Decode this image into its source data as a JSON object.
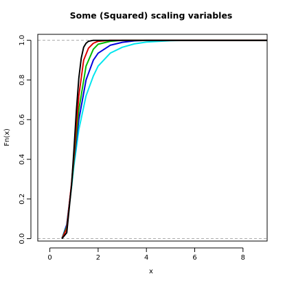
{
  "chart_data": {
    "type": "line",
    "title": "Some (Squared) scaling variables",
    "xlabel": "x",
    "ylabel": "Fn(x)",
    "xlim": [
      -0.5,
      9
    ],
    "ylim": [
      -0.012,
      1.03
    ],
    "x_ticks": [
      0,
      2,
      4,
      6,
      8
    ],
    "y_ticks": [
      0.0,
      0.2,
      0.4,
      0.6,
      0.8,
      1.0
    ],
    "x_tick_labels": [
      "0",
      "2",
      "4",
      "6",
      "8"
    ],
    "y_tick_labels": [
      "0.0",
      "0.2",
      "0.4",
      "0.6",
      "0.8",
      "1.0"
    ],
    "reference_lines": [
      0,
      1
    ],
    "grid": false,
    "legend": "none",
    "series": [
      {
        "color": "#00e5ee",
        "x": [
          0.5,
          0.7,
          0.9,
          1.0,
          1.2,
          1.5,
          1.8,
          2.0,
          2.5,
          3.0,
          3.5,
          4.0,
          5.0,
          6.0,
          9.0
        ],
        "y": [
          0.0,
          0.07,
          0.26,
          0.37,
          0.55,
          0.72,
          0.82,
          0.87,
          0.935,
          0.965,
          0.982,
          0.991,
          0.998,
          1.0,
          1.0
        ]
      },
      {
        "color": "#0000dd",
        "x": [
          0.5,
          0.7,
          0.9,
          1.0,
          1.2,
          1.5,
          1.8,
          2.0,
          2.5,
          3.0,
          3.5,
          4.0,
          9.0
        ],
        "y": [
          0.0,
          0.07,
          0.27,
          0.39,
          0.6,
          0.8,
          0.9,
          0.935,
          0.975,
          0.99,
          0.997,
          1.0,
          1.0
        ]
      },
      {
        "color": "#00bb00",
        "x": [
          0.5,
          0.7,
          0.9,
          1.0,
          1.2,
          1.5,
          1.8,
          2.0,
          2.5,
          3.0,
          9.0
        ],
        "y": [
          0.0,
          0.06,
          0.27,
          0.4,
          0.65,
          0.87,
          0.955,
          0.98,
          0.995,
          1.0,
          1.0
        ]
      },
      {
        "color": "#dd0000",
        "x": [
          0.5,
          0.7,
          0.9,
          1.0,
          1.2,
          1.4,
          1.6,
          1.8,
          2.0,
          2.5,
          9.0
        ],
        "y": [
          0.0,
          0.05,
          0.28,
          0.42,
          0.72,
          0.9,
          0.96,
          0.985,
          0.995,
          1.0,
          1.0
        ]
      },
      {
        "color": "#000000",
        "x": [
          0.5,
          0.7,
          0.9,
          1.0,
          1.1,
          1.2,
          1.3,
          1.4,
          1.5,
          1.6,
          1.8,
          9.0
        ],
        "y": [
          0.0,
          0.03,
          0.27,
          0.45,
          0.65,
          0.81,
          0.91,
          0.965,
          0.985,
          0.995,
          1.0,
          1.0
        ]
      }
    ]
  }
}
